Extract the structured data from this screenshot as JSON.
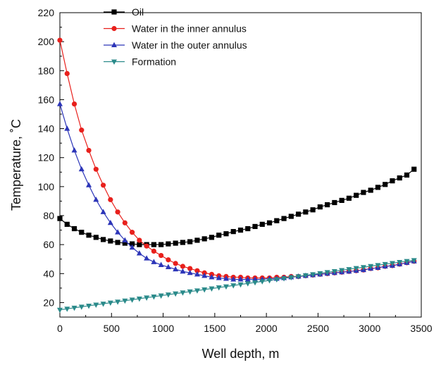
{
  "chart_data": {
    "type": "line",
    "xlabel": "Well depth, m",
    "ylabel": "Temperature, ˚C",
    "xlim": [
      0,
      3500
    ],
    "ylim": [
      10,
      220
    ],
    "x_ticks": [
      0,
      500,
      1000,
      1500,
      2000,
      2500,
      3000,
      3500
    ],
    "y_ticks": [
      20,
      40,
      60,
      80,
      100,
      120,
      140,
      160,
      180,
      200,
      220
    ],
    "grid": false,
    "legend_position": "top-left",
    "series": [
      {
        "name": "Oil",
        "color": "#000000",
        "marker": "square",
        "x": [
          0,
          70,
          140,
          210,
          280,
          350,
          420,
          490,
          560,
          630,
          700,
          770,
          840,
          910,
          980,
          1050,
          1120,
          1190,
          1260,
          1330,
          1400,
          1470,
          1540,
          1610,
          1680,
          1750,
          1820,
          1890,
          1960,
          2030,
          2100,
          2170,
          2240,
          2310,
          2380,
          2450,
          2520,
          2590,
          2660,
          2730,
          2800,
          2870,
          2940,
          3010,
          3080,
          3150,
          3220,
          3290,
          3360,
          3430
        ],
        "y": [
          78,
          74,
          71,
          68.5,
          66.5,
          65,
          63.5,
          62.5,
          61.5,
          61,
          60.5,
          60,
          60,
          60,
          60,
          60.5,
          61,
          61.5,
          62,
          63,
          64,
          65,
          66.5,
          67.5,
          69,
          70,
          71,
          72.5,
          74,
          75,
          76.5,
          78,
          79.5,
          81,
          82.5,
          84,
          86,
          87.5,
          89,
          90.5,
          92,
          94,
          96,
          97.5,
          99.5,
          101.5,
          104,
          106,
          108,
          112
        ]
      },
      {
        "name": "Water in the inner annulus",
        "color": "#e8201c",
        "marker": "circle",
        "x": [
          0,
          70,
          140,
          210,
          280,
          350,
          420,
          490,
          560,
          630,
          700,
          770,
          840,
          910,
          980,
          1050,
          1120,
          1190,
          1260,
          1330,
          1400,
          1470,
          1540,
          1610,
          1680,
          1750,
          1820,
          1890,
          1960,
          2030,
          2100,
          2170,
          2240,
          2310,
          2380,
          2450,
          2520,
          2590,
          2660,
          2730,
          2800,
          2870,
          2940,
          3010,
          3080,
          3150,
          3220,
          3290,
          3360,
          3430
        ],
        "y": [
          201,
          178,
          157,
          139,
          125,
          112,
          101,
          91,
          82.5,
          75,
          68.5,
          63,
          59,
          55.5,
          52.5,
          49.5,
          47,
          45,
          43.5,
          42,
          40.5,
          39.5,
          38.5,
          38,
          37.5,
          37.5,
          37,
          37,
          37,
          37,
          37.5,
          37.5,
          38,
          38,
          38.5,
          39,
          39.5,
          40,
          40.5,
          41,
          41.5,
          42,
          42.5,
          43.5,
          44,
          45,
          45.5,
          46.5,
          47.5,
          48.5
        ]
      },
      {
        "name": "Water in the outer annulus",
        "color": "#2c35b8",
        "marker": "triangle-up",
        "x": [
          0,
          70,
          140,
          210,
          280,
          350,
          420,
          490,
          560,
          630,
          700,
          770,
          840,
          910,
          980,
          1050,
          1120,
          1190,
          1260,
          1330,
          1400,
          1470,
          1540,
          1610,
          1680,
          1750,
          1820,
          1890,
          1960,
          2030,
          2100,
          2170,
          2240,
          2310,
          2380,
          2450,
          2520,
          2590,
          2660,
          2730,
          2800,
          2870,
          2940,
          3010,
          3080,
          3150,
          3220,
          3290,
          3360,
          3430
        ],
        "y": [
          157,
          140,
          125,
          112,
          101,
          91,
          82.5,
          75,
          68.5,
          63,
          58,
          54,
          50.5,
          48,
          46,
          44.5,
          43,
          41.5,
          40.5,
          39.5,
          38.5,
          37.5,
          37,
          36.5,
          36,
          36,
          36,
          36,
          36,
          36.5,
          36.5,
          37,
          37.5,
          38,
          38.5,
          39,
          39.5,
          40,
          40.5,
          41,
          41.5,
          42,
          42.5,
          43.5,
          44,
          45,
          45.5,
          46.5,
          47.5,
          48.5
        ]
      },
      {
        "name": "Formation",
        "color": "#2a8a8a",
        "marker": "triangle-down",
        "x": [
          0,
          70,
          140,
          210,
          280,
          350,
          420,
          490,
          560,
          630,
          700,
          770,
          840,
          910,
          980,
          1050,
          1120,
          1190,
          1260,
          1330,
          1400,
          1470,
          1540,
          1610,
          1680,
          1750,
          1820,
          1890,
          1960,
          2030,
          2100,
          2170,
          2240,
          2310,
          2380,
          2450,
          2520,
          2590,
          2660,
          2730,
          2800,
          2870,
          2940,
          3010,
          3080,
          3150,
          3220,
          3290,
          3360,
          3430
        ],
        "y": [
          15,
          15.7,
          16.4,
          17.1,
          17.8,
          18.5,
          19.2,
          19.9,
          20.6,
          21.3,
          22,
          22.7,
          23.4,
          24.1,
          24.8,
          25.5,
          26.2,
          26.9,
          27.6,
          28.3,
          29,
          29.7,
          30.4,
          31.1,
          31.8,
          32.5,
          33.2,
          33.9,
          34.6,
          35.3,
          36,
          36.7,
          37.4,
          38.1,
          38.8,
          39.5,
          40.2,
          40.9,
          41.6,
          42.3,
          43,
          43.7,
          44.4,
          45.1,
          45.8,
          46.5,
          47.2,
          47.9,
          48.6,
          49.2
        ]
      }
    ]
  }
}
